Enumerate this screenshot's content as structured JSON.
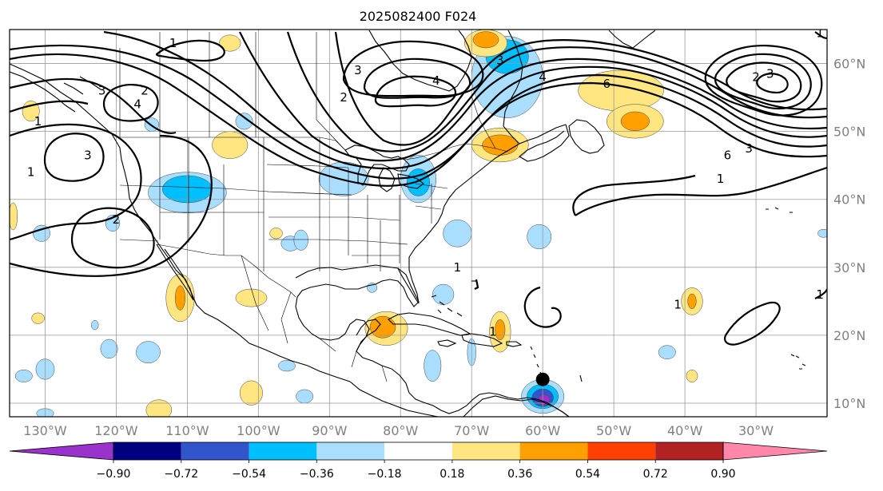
{
  "title": "2025082400 F024",
  "map": {
    "lon_range": [
      -135,
      -20
    ],
    "lat_range": [
      8,
      65
    ],
    "lon_ticks": [
      {
        "lon": -130,
        "label": "130°W"
      },
      {
        "lon": -120,
        "label": "120°W"
      },
      {
        "lon": -110,
        "label": "110°W"
      },
      {
        "lon": -100,
        "label": "100°W"
      },
      {
        "lon": -90,
        "label": "90°W"
      },
      {
        "lon": -80,
        "label": "80°W"
      },
      {
        "lon": -70,
        "label": "70°W"
      },
      {
        "lon": -60,
        "label": "60°W"
      },
      {
        "lon": -50,
        "label": "50°W"
      },
      {
        "lon": -40,
        "label": "40°W"
      },
      {
        "lon": -30,
        "label": "30°W"
      }
    ],
    "lat_ticks": [
      {
        "lat": 10,
        "label": "10°N"
      },
      {
        "lat": 20,
        "label": "20°N"
      },
      {
        "lat": 30,
        "label": "30°N"
      },
      {
        "lat": 40,
        "label": "40°N"
      },
      {
        "lat": 50,
        "label": "50°N"
      },
      {
        "lat": 60,
        "label": "60°N"
      }
    ],
    "storm_marker": {
      "lon": -60,
      "lat": 13.5
    }
  },
  "contour_labels": [
    {
      "text": "1",
      "lon": -112,
      "lat": 63
    },
    {
      "text": "3",
      "lon": -122,
      "lat": 56
    },
    {
      "text": "4",
      "lon": -117,
      "lat": 54
    },
    {
      "text": "2",
      "lon": -116,
      "lat": 56
    },
    {
      "text": "1",
      "lon": -131,
      "lat": 51.5
    },
    {
      "text": "3",
      "lon": -124,
      "lat": 46.5
    },
    {
      "text": "1",
      "lon": -132,
      "lat": 44
    },
    {
      "text": "2",
      "lon": -120,
      "lat": 37
    },
    {
      "text": "3",
      "lon": -86,
      "lat": 59
    },
    {
      "text": "2",
      "lon": -88,
      "lat": 55
    },
    {
      "text": "4",
      "lon": -75,
      "lat": 57.5
    },
    {
      "text": "3",
      "lon": -66,
      "lat": 60.5
    },
    {
      "text": "4",
      "lon": -60,
      "lat": 58
    },
    {
      "text": "6",
      "lon": -51,
      "lat": 57
    },
    {
      "text": "2",
      "lon": -30,
      "lat": 58
    },
    {
      "text": "3",
      "lon": -28,
      "lat": 58.5
    },
    {
      "text": "6",
      "lon": -34,
      "lat": 46.5
    },
    {
      "text": "3",
      "lon": -31,
      "lat": 47.5
    },
    {
      "text": "1",
      "lon": -35,
      "lat": 43
    },
    {
      "text": "1",
      "lon": -72,
      "lat": 30
    },
    {
      "text": "1",
      "lon": -41,
      "lat": 24.5
    },
    {
      "text": "1",
      "lon": -21,
      "lat": 26
    },
    {
      "text": "1",
      "lon": -21,
      "lat": 64.5
    },
    {
      "text": "1",
      "lon": -67,
      "lat": 20.5
    }
  ],
  "colorbar": {
    "levels": [
      "−0.90",
      "−0.72",
      "−0.54",
      "−0.36",
      "−0.18",
      "0.18",
      "0.36",
      "0.54",
      "0.72",
      "0.90"
    ],
    "colors": [
      "#9933cc",
      "#000080",
      "#3355cc",
      "#00bfff",
      "#aadeff",
      "#ffffff",
      "#ffe680",
      "#ffa000",
      "#ff4000",
      "#b22222",
      "#ff88aa"
    ],
    "extend": "both"
  },
  "shading": {
    "blobs": [
      {
        "lon": -110,
        "lat": 41,
        "rx": 5.5,
        "ry": 3,
        "color": "#aadeff"
      },
      {
        "lon": -110,
        "lat": 41.5,
        "rx": 3.5,
        "ry": 2,
        "color": "#00bfff"
      },
      {
        "lon": -88,
        "lat": 43,
        "rx": 3.5,
        "ry": 2.5,
        "color": "#aadeff"
      },
      {
        "lon": -77.5,
        "lat": 43,
        "rx": 2.5,
        "ry": 3.5,
        "color": "#aadeff"
      },
      {
        "lon": -77.5,
        "lat": 42.5,
        "rx": 1.6,
        "ry": 2,
        "color": "#00bfff"
      },
      {
        "lon": -65,
        "lat": 58,
        "rx": 5,
        "ry": 6,
        "color": "#aadeff"
      },
      {
        "lon": -65,
        "lat": 61,
        "rx": 3,
        "ry": 2.5,
        "color": "#00bfff"
      },
      {
        "lon": -68,
        "lat": 63,
        "rx": 3,
        "ry": 2,
        "color": "#ffe680"
      },
      {
        "lon": -68,
        "lat": 63.5,
        "rx": 1.8,
        "ry": 1.2,
        "color": "#ffa000"
      },
      {
        "lon": -49,
        "lat": 56,
        "rx": 6,
        "ry": 3,
        "color": "#ffe680"
      },
      {
        "lon": -47,
        "lat": 51.5,
        "rx": 4,
        "ry": 2.5,
        "color": "#ffe680"
      },
      {
        "lon": -47,
        "lat": 51.5,
        "rx": 2,
        "ry": 1.4,
        "color": "#ffa000"
      },
      {
        "lon": -66,
        "lat": 48,
        "rx": 4,
        "ry": 2.5,
        "color": "#ffe680"
      },
      {
        "lon": -66,
        "lat": 48,
        "rx": 2.5,
        "ry": 1.5,
        "color": "#ffa000"
      },
      {
        "lon": -104,
        "lat": 48,
        "rx": 2.5,
        "ry": 2,
        "color": "#ffe680"
      },
      {
        "lon": -102,
        "lat": 51.5,
        "rx": 1.2,
        "ry": 1.2,
        "color": "#aadeff"
      },
      {
        "lon": -115,
        "lat": 51,
        "rx": 1,
        "ry": 1,
        "color": "#aadeff"
      },
      {
        "lon": -132,
        "lat": 53,
        "rx": 1.2,
        "ry": 1.5,
        "color": "#ffe680"
      },
      {
        "lon": -104,
        "lat": 63,
        "rx": 1.5,
        "ry": 1.2,
        "color": "#ffe680"
      },
      {
        "lon": -111,
        "lat": 25.5,
        "rx": 2,
        "ry": 3.5,
        "color": "#ffe680"
      },
      {
        "lon": -111,
        "lat": 25.5,
        "rx": 0.7,
        "ry": 1.8,
        "color": "#ffa000"
      },
      {
        "lon": -101,
        "lat": 25.5,
        "rx": 2.2,
        "ry": 1.3,
        "color": "#ffe680"
      },
      {
        "lon": -82,
        "lat": 21,
        "rx": 3,
        "ry": 2.5,
        "color": "#ffe680"
      },
      {
        "lon": -82.5,
        "lat": 21.2,
        "rx": 1.8,
        "ry": 1.6,
        "color": "#ffa000"
      },
      {
        "lon": -66,
        "lat": 20.5,
        "rx": 1.5,
        "ry": 3,
        "color": "#ffe680"
      },
      {
        "lon": -66,
        "lat": 20.8,
        "rx": 0.7,
        "ry": 1.5,
        "color": "#ffa000"
      },
      {
        "lon": -39,
        "lat": 25,
        "rx": 1.5,
        "ry": 2,
        "color": "#ffe680"
      },
      {
        "lon": -39,
        "lat": 25,
        "rx": 0.6,
        "ry": 1.1,
        "color": "#ffa000"
      },
      {
        "lon": -60,
        "lat": 11,
        "rx": 3,
        "ry": 2.5,
        "color": "#aadeff"
      },
      {
        "lon": -60,
        "lat": 11,
        "rx": 2.2,
        "ry": 1.8,
        "color": "#00bfff"
      },
      {
        "lon": -60,
        "lat": 10.8,
        "rx": 1.5,
        "ry": 1.3,
        "color": "#3355cc"
      },
      {
        "lon": -59.8,
        "lat": 10.5,
        "rx": 0.8,
        "ry": 0.8,
        "color": "#9933cc"
      },
      {
        "lon": -72,
        "lat": 35,
        "rx": 2,
        "ry": 2,
        "color": "#aadeff"
      },
      {
        "lon": -60.5,
        "lat": 34.5,
        "rx": 1.7,
        "ry": 1.8,
        "color": "#aadeff"
      },
      {
        "lon": -115.5,
        "lat": 17.5,
        "rx": 1.7,
        "ry": 1.6,
        "color": "#aadeff"
      },
      {
        "lon": -121,
        "lat": 18,
        "rx": 1.2,
        "ry": 1.4,
        "color": "#aadeff"
      },
      {
        "lon": -101,
        "lat": 11.5,
        "rx": 1.6,
        "ry": 1.8,
        "color": "#ffe680"
      },
      {
        "lon": -114,
        "lat": 9,
        "rx": 1.8,
        "ry": 1.5,
        "color": "#ffe680"
      },
      {
        "lon": -130,
        "lat": 15,
        "rx": 1.3,
        "ry": 1.5,
        "color": "#aadeff"
      },
      {
        "lon": -133,
        "lat": 14,
        "rx": 1.2,
        "ry": 0.9,
        "color": "#aadeff"
      },
      {
        "lon": -75.5,
        "lat": 15.5,
        "rx": 1.2,
        "ry": 2.3,
        "color": "#aadeff"
      },
      {
        "lon": -70,
        "lat": 17.5,
        "rx": 0.6,
        "ry": 2,
        "color": "#aadeff"
      },
      {
        "lon": -95.5,
        "lat": 33.5,
        "rx": 1.3,
        "ry": 1.1,
        "color": "#aadeff"
      },
      {
        "lon": -93.5,
        "lat": 11,
        "rx": 1.2,
        "ry": 1,
        "color": "#aadeff"
      },
      {
        "lon": -84,
        "lat": 27,
        "rx": 0.7,
        "ry": 0.7,
        "color": "#aadeff"
      },
      {
        "lon": -74,
        "lat": 26,
        "rx": 1.5,
        "ry": 1.5,
        "color": "#aadeff"
      },
      {
        "lon": -42.5,
        "lat": 17.5,
        "rx": 1.2,
        "ry": 1,
        "color": "#aadeff"
      },
      {
        "lon": -39,
        "lat": 14,
        "rx": 0.8,
        "ry": 0.9,
        "color": "#ffe680"
      },
      {
        "lon": -130.5,
        "lat": 35,
        "rx": 1.2,
        "ry": 1.2,
        "color": "#aadeff"
      },
      {
        "lon": -120.5,
        "lat": 36.5,
        "rx": 1,
        "ry": 1.2,
        "color": "#aadeff"
      },
      {
        "lon": -131,
        "lat": 22.5,
        "rx": 0.9,
        "ry": 0.8,
        "color": "#ffe680"
      },
      {
        "lon": -123,
        "lat": 21.5,
        "rx": 0.5,
        "ry": 0.7,
        "color": "#aadeff"
      },
      {
        "lon": -130,
        "lat": 8.5,
        "rx": 1.2,
        "ry": 0.7,
        "color": "#aadeff"
      },
      {
        "lon": -96,
        "lat": 15.5,
        "rx": 1.2,
        "ry": 0.8,
        "color": "#aadeff"
      },
      {
        "lon": -94,
        "lat": 34,
        "rx": 1,
        "ry": 1.5,
        "color": "#aadeff"
      },
      {
        "lon": -20.5,
        "lat": 35,
        "rx": 0.8,
        "ry": 0.6,
        "color": "#aadeff"
      },
      {
        "lon": -134.5,
        "lat": 37.5,
        "rx": 0.6,
        "ry": 2,
        "color": "#ffe680"
      },
      {
        "lon": -97.5,
        "lat": 35,
        "rx": 0.9,
        "ry": 0.8,
        "color": "#ffe680"
      }
    ]
  }
}
